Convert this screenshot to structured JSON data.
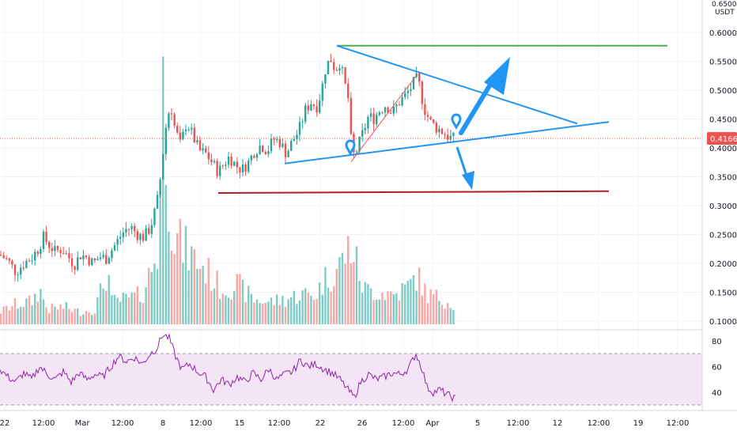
{
  "chart_data": {
    "type": "candlestick",
    "unit_label": "USDT",
    "corner_clip_text": "0.65000",
    "current_price": "0.41661",
    "price_axis": {
      "ticks": [
        "0.60000",
        "0.55000",
        "0.50000",
        "0.45000",
        "0.40000",
        "0.35000",
        "0.30000",
        "0.25000",
        "0.20000",
        "0.15000",
        "0.10000"
      ],
      "range": [
        0.088,
        0.645
      ]
    },
    "rsi_axis": {
      "ticks": [
        "80",
        "60",
        "40"
      ],
      "range": [
        25,
        90
      ],
      "bands": [
        70,
        30
      ]
    },
    "x_axis": {
      "labels": [
        "22",
        "12:00",
        "Mar",
        "12:00",
        "8",
        "12:00",
        "15",
        "12:00",
        "22",
        "26",
        "12:00",
        "Apr",
        "5",
        "12:00",
        "12",
        "12:00",
        "19",
        "12:00"
      ]
    },
    "price_path": [
      [
        0,
        0.215
      ],
      [
        10,
        0.205
      ],
      [
        20,
        0.185
      ],
      [
        30,
        0.2
      ],
      [
        40,
        0.21
      ],
      [
        48,
        0.225
      ],
      [
        55,
        0.245
      ],
      [
        62,
        0.232
      ],
      [
        70,
        0.22
      ],
      [
        78,
        0.225
      ],
      [
        86,
        0.212
      ],
      [
        94,
        0.198
      ],
      [
        102,
        0.215
      ],
      [
        110,
        0.21
      ],
      [
        118,
        0.2
      ],
      [
        126,
        0.212
      ],
      [
        134,
        0.208
      ],
      [
        142,
        0.225
      ],
      [
        150,
        0.242
      ],
      [
        158,
        0.258
      ],
      [
        166,
        0.262
      ],
      [
        174,
        0.25
      ],
      [
        182,
        0.245
      ],
      [
        190,
        0.262
      ],
      [
        198,
        0.3
      ],
      [
        204,
        0.36
      ],
      [
        208,
        0.42
      ],
      [
        212,
        0.455
      ],
      [
        216,
        0.475
      ],
      [
        220,
        0.44
      ],
      [
        228,
        0.405
      ],
      [
        236,
        0.445
      ],
      [
        244,
        0.42
      ],
      [
        252,
        0.395
      ],
      [
        260,
        0.39
      ],
      [
        268,
        0.375
      ],
      [
        276,
        0.358
      ],
      [
        282,
        0.37
      ],
      [
        290,
        0.385
      ],
      [
        298,
        0.37
      ],
      [
        306,
        0.362
      ],
      [
        314,
        0.375
      ],
      [
        322,
        0.395
      ],
      [
        330,
        0.405
      ],
      [
        338,
        0.395
      ],
      [
        346,
        0.415
      ],
      [
        354,
        0.41
      ],
      [
        362,
        0.39
      ],
      [
        370,
        0.412
      ],
      [
        378,
        0.43
      ],
      [
        386,
        0.465
      ],
      [
        394,
        0.48
      ],
      [
        400,
        0.47
      ],
      [
        406,
        0.495
      ],
      [
        412,
        0.54
      ],
      [
        418,
        0.555
      ],
      [
        424,
        0.535
      ],
      [
        430,
        0.55
      ],
      [
        436,
        0.51
      ],
      [
        440,
        0.49
      ],
      [
        444,
        0.41
      ],
      [
        448,
        0.385
      ],
      [
        452,
        0.4
      ],
      [
        460,
        0.43
      ],
      [
        466,
        0.455
      ],
      [
        472,
        0.45
      ],
      [
        480,
        0.465
      ],
      [
        488,
        0.475
      ],
      [
        496,
        0.46
      ],
      [
        504,
        0.478
      ],
      [
        512,
        0.49
      ],
      [
        520,
        0.505
      ],
      [
        526,
        0.52
      ],
      [
        530,
        0.51
      ],
      [
        536,
        0.47
      ],
      [
        544,
        0.445
      ],
      [
        552,
        0.435
      ],
      [
        560,
        0.428
      ],
      [
        568,
        0.418
      ],
      [
        576,
        0.415
      ]
    ],
    "volume_path": [
      [
        0,
        0.05
      ],
      [
        20,
        0.08
      ],
      [
        40,
        0.09
      ],
      [
        50,
        0.14
      ],
      [
        60,
        0.06
      ],
      [
        80,
        0.07
      ],
      [
        100,
        0.05
      ],
      [
        120,
        0.06
      ],
      [
        137,
        0.22
      ],
      [
        140,
        0.09
      ],
      [
        160,
        0.1
      ],
      [
        180,
        0.12
      ],
      [
        200,
        0.3
      ],
      [
        207,
        1.0
      ],
      [
        212,
        0.6
      ],
      [
        220,
        0.35
      ],
      [
        240,
        0.28
      ],
      [
        260,
        0.22
      ],
      [
        280,
        0.14
      ],
      [
        300,
        0.16
      ],
      [
        320,
        0.1
      ],
      [
        340,
        0.09
      ],
      [
        360,
        0.1
      ],
      [
        380,
        0.12
      ],
      [
        400,
        0.12
      ],
      [
        410,
        0.18
      ],
      [
        420,
        0.2
      ],
      [
        430,
        0.24
      ],
      [
        444,
        0.32
      ],
      [
        460,
        0.14
      ],
      [
        480,
        0.13
      ],
      [
        500,
        0.12
      ],
      [
        520,
        0.16
      ],
      [
        526,
        0.2
      ],
      [
        540,
        0.12
      ],
      [
        560,
        0.1
      ],
      [
        576,
        0.08
      ]
    ],
    "rsi_path": [
      [
        0,
        58
      ],
      [
        10,
        52
      ],
      [
        20,
        48
      ],
      [
        30,
        55
      ],
      [
        40,
        50
      ],
      [
        50,
        60
      ],
      [
        60,
        54
      ],
      [
        70,
        50
      ],
      [
        80,
        56
      ],
      [
        90,
        48
      ],
      [
        100,
        55
      ],
      [
        110,
        50
      ],
      [
        120,
        54
      ],
      [
        130,
        52
      ],
      [
        140,
        60
      ],
      [
        150,
        68
      ],
      [
        160,
        64
      ],
      [
        170,
        67
      ],
      [
        180,
        62
      ],
      [
        190,
        70
      ],
      [
        198,
        74
      ],
      [
        206,
        85
      ],
      [
        214,
        82
      ],
      [
        222,
        68
      ],
      [
        230,
        58
      ],
      [
        240,
        62
      ],
      [
        250,
        56
      ],
      [
        260,
        52
      ],
      [
        270,
        42
      ],
      [
        280,
        50
      ],
      [
        290,
        46
      ],
      [
        300,
        52
      ],
      [
        310,
        48
      ],
      [
        320,
        55
      ],
      [
        330,
        50
      ],
      [
        340,
        58
      ],
      [
        350,
        50
      ],
      [
        360,
        54
      ],
      [
        370,
        56
      ],
      [
        380,
        65
      ],
      [
        390,
        60
      ],
      [
        400,
        62
      ],
      [
        410,
        58
      ],
      [
        420,
        55
      ],
      [
        430,
        50
      ],
      [
        440,
        42
      ],
      [
        448,
        36
      ],
      [
        456,
        48
      ],
      [
        466,
        54
      ],
      [
        476,
        50
      ],
      [
        486,
        52
      ],
      [
        496,
        55
      ],
      [
        506,
        54
      ],
      [
        516,
        58
      ],
      [
        526,
        70
      ],
      [
        534,
        58
      ],
      [
        540,
        44
      ],
      [
        548,
        40
      ],
      [
        556,
        42
      ],
      [
        566,
        38
      ],
      [
        576,
        35
      ]
    ],
    "drawings": {
      "resistance_green": {
        "from": [
          426,
          0.577
        ],
        "to": [
          844,
          0.577
        ]
      },
      "support_red": {
        "from": [
          276,
          0.322
        ],
        "to": [
          770,
          0.325
        ]
      },
      "upper_trend": {
        "from": [
          426,
          0.577
        ],
        "to": [
          730,
          0.442
        ]
      },
      "lower_trend": {
        "from": [
          360,
          0.373
        ],
        "to": [
          770,
          0.445
        ]
      },
      "red_diagonal": {
        "from": [
          444,
          0.376
        ],
        "to": [
          528,
          0.528
        ]
      }
    }
  },
  "colors": {
    "up": "#26a69a",
    "down": "#ef5350",
    "rsi_line": "#8e24aa",
    "rsi_band": "#f3e5f5",
    "trend_blue": "#2196f3",
    "resistance": "#4caf50",
    "support": "#b71c1c",
    "price_label_bg": "#ef5350"
  },
  "icons": [
    "marker-pin-icon",
    "arrow-up-icon",
    "arrow-down-icon"
  ]
}
